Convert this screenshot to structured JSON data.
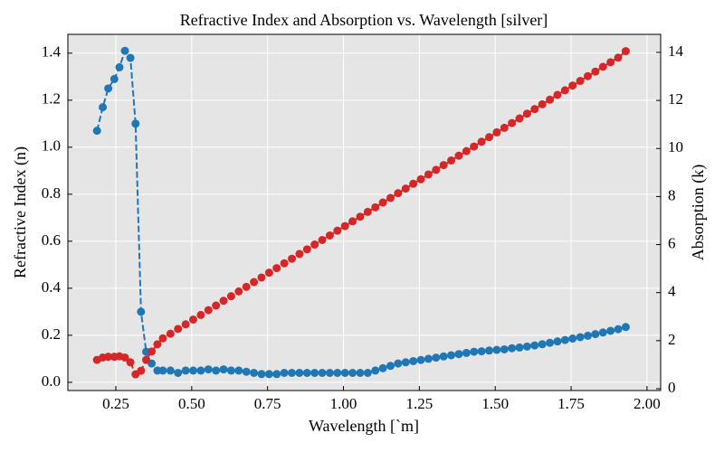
{
  "chart_data": {
    "type": "line",
    "title": "Refractive Index and Absorption vs. Wavelength [silver]",
    "x_label": "Wavelength [`m]",
    "y_label": "Refractive Index (n)",
    "y2_label": "Absorption (k)",
    "x": [
      0.188,
      0.207,
      0.225,
      0.245,
      0.262,
      0.28,
      0.298,
      0.315,
      0.333,
      0.35,
      0.368,
      0.387,
      0.405,
      0.43,
      0.455,
      0.48,
      0.505,
      0.53,
      0.555,
      0.58,
      0.605,
      0.63,
      0.655,
      0.68,
      0.705,
      0.73,
      0.755,
      0.78,
      0.805,
      0.83,
      0.855,
      0.88,
      0.905,
      0.93,
      0.955,
      0.98,
      1.005,
      1.03,
      1.055,
      1.08,
      1.105,
      1.13,
      1.155,
      1.18,
      1.205,
      1.23,
      1.255,
      1.28,
      1.305,
      1.33,
      1.355,
      1.38,
      1.405,
      1.43,
      1.455,
      1.48,
      1.505,
      1.53,
      1.555,
      1.58,
      1.605,
      1.63,
      1.655,
      1.68,
      1.705,
      1.73,
      1.755,
      1.78,
      1.805,
      1.83,
      1.855,
      1.88,
      1.905,
      1.93
    ],
    "series": [
      {
        "color": "#1f77b4",
        "values": [
          1.07,
          1.17,
          1.25,
          1.29,
          1.34,
          1.41,
          1.38,
          1.1,
          0.3,
          0.13,
          0.08,
          0.05,
          0.05,
          0.05,
          0.04,
          0.05,
          0.05,
          0.05,
          0.055,
          0.05,
          0.055,
          0.05,
          0.05,
          0.045,
          0.04,
          0.035,
          0.035,
          0.035,
          0.04,
          0.04,
          0.04,
          0.04,
          0.04,
          0.04,
          0.04,
          0.04,
          0.04,
          0.04,
          0.04,
          0.04,
          0.05,
          0.06,
          0.07,
          0.08,
          0.085,
          0.09,
          0.095,
          0.1,
          0.105,
          0.11,
          0.115,
          0.12,
          0.125,
          0.13,
          0.132,
          0.135,
          0.138,
          0.14,
          0.145,
          0.148,
          0.152,
          0.157,
          0.162,
          0.168,
          0.174,
          0.18,
          0.186,
          0.192,
          0.198,
          0.205,
          0.212,
          0.219,
          0.226,
          0.235
        ]
      },
      {
        "color": "#d62728",
        "axis": "y2",
        "values": [
          1.2,
          1.3,
          1.33,
          1.33,
          1.35,
          1.3,
          1.1,
          0.6,
          0.75,
          1.2,
          1.55,
          1.85,
          2.1,
          2.29,
          2.49,
          2.68,
          2.88,
          3.07,
          3.27,
          3.46,
          3.66,
          3.85,
          4.05,
          4.24,
          4.44,
          4.63,
          4.83,
          5.02,
          5.22,
          5.41,
          5.61,
          5.8,
          6.0,
          6.19,
          6.38,
          6.58,
          6.77,
          6.97,
          7.16,
          7.36,
          7.55,
          7.75,
          7.94,
          8.14,
          8.33,
          8.53,
          8.72,
          8.92,
          9.11,
          9.31,
          9.5,
          9.7,
          9.89,
          10.08,
          10.28,
          10.47,
          10.67,
          10.86,
          11.06,
          11.25,
          11.45,
          11.64,
          11.84,
          12.03,
          12.23,
          12.42,
          12.62,
          12.81,
          13.01,
          13.2,
          13.4,
          13.59,
          13.78,
          14.05
        ]
      }
    ],
    "xlim": [
      0.092,
      2.045
    ],
    "xticks": [
      0.25,
      {
        "value": 0.5,
        "label": "0.50"
      },
      0.75,
      {
        "value": 1.0,
        "label": "1.00"
      },
      1.25,
      {
        "value": 1.5,
        "label": "1.50"
      },
      1.75,
      {
        "value": 2.0,
        "label": "2.00"
      }
    ],
    "ylim": [
      -0.035,
      1.48
    ],
    "yticks": [
      {
        "value": 0,
        "label": "0.0"
      },
      0.2,
      0.4,
      0.6,
      0.8,
      {
        "value": 1.0,
        "label": "1.0"
      },
      1.2,
      1.4
    ],
    "y2lim": [
      -0.075,
      14.75
    ],
    "y2ticks": [
      0,
      2,
      4,
      6,
      8,
      10,
      12,
      14
    ],
    "grid": true,
    "line_style": "dashed"
  }
}
